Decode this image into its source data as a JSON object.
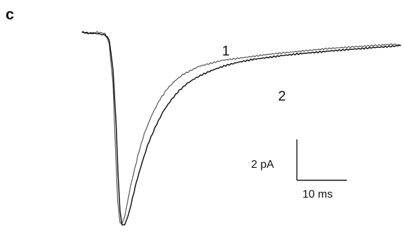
{
  "panel_label": "c",
  "chart_data": {
    "type": "line",
    "title": "",
    "xlabel": "",
    "ylabel": "",
    "x_unit": "ms",
    "y_unit": "pA",
    "xlim": [
      0,
      82
    ],
    "ylim": [
      -9.7,
      0.2
    ],
    "grid": false,
    "series": [
      {
        "name": "1",
        "color": "#444444",
        "x": [
          0,
          2,
          4,
          6,
          7,
          8,
          8.4,
          8.8,
          9.2,
          9.8,
          10.3,
          11,
          11.6,
          12.5,
          13.5,
          14.5,
          16,
          18,
          20,
          22,
          24,
          26,
          28,
          30,
          33,
          36,
          40,
          44,
          48,
          52,
          56,
          60,
          64,
          68,
          72,
          76,
          80,
          82
        ],
        "y": [
          0.05,
          -0.02,
          0.05,
          -0.02,
          -0.5,
          -2.5,
          -4.5,
          -6.5,
          -8.3,
          -9.4,
          -9.45,
          -9.1,
          -8.5,
          -7.6,
          -6.8,
          -6.0,
          -5.0,
          -4.05,
          -3.3,
          -2.75,
          -2.35,
          -2.05,
          -1.85,
          -1.65,
          -1.5,
          -1.35,
          -1.25,
          -1.15,
          -1.05,
          -0.97,
          -0.9,
          -0.82,
          -0.75,
          -0.7,
          -0.65,
          -0.6,
          -0.55,
          -0.6
        ]
      },
      {
        "name": "2",
        "color": "#111111",
        "x": [
          0,
          2,
          4,
          6,
          7,
          8,
          8.8,
          9.3,
          9.8,
          10.3,
          11,
          12,
          13,
          14,
          15.5,
          17,
          19,
          21,
          23,
          25,
          27,
          29,
          31,
          34,
          37,
          40,
          44,
          48,
          52,
          56,
          60,
          64,
          68,
          72,
          76,
          80,
          82
        ],
        "y": [
          0.05,
          0.0,
          -0.02,
          -0.1,
          -0.3,
          -1.8,
          -4.5,
          -7.0,
          -8.8,
          -9.5,
          -9.5,
          -9.0,
          -8.2,
          -7.4,
          -6.4,
          -5.5,
          -4.6,
          -3.85,
          -3.3,
          -2.85,
          -2.5,
          -2.25,
          -2.05,
          -1.8,
          -1.6,
          -1.45,
          -1.3,
          -1.2,
          -1.1,
          -1.02,
          -0.95,
          -0.88,
          -0.82,
          -0.76,
          -0.7,
          -0.65,
          -0.6
        ]
      }
    ],
    "annotations": [
      "1",
      "2"
    ],
    "scale_bar": {
      "x_value": 10,
      "x_label": "10 ms",
      "y_value": 2,
      "y_label": "2 pA"
    }
  }
}
